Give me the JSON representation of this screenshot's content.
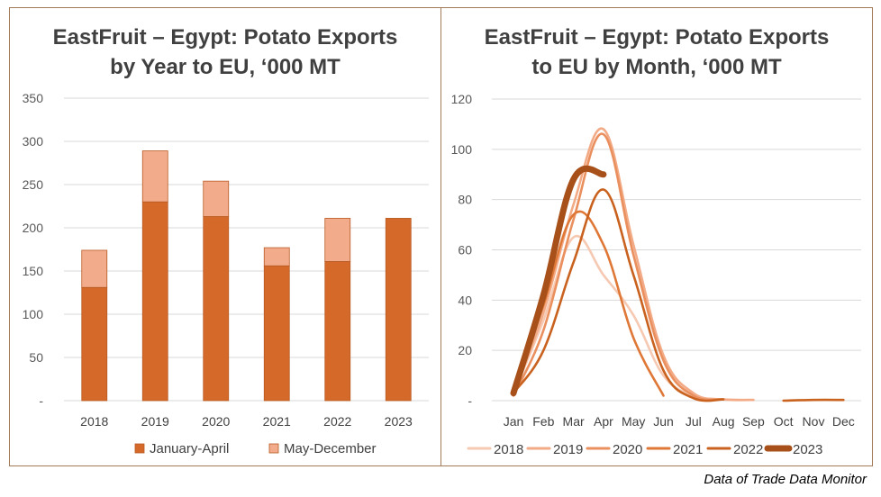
{
  "caption": "Data of Trade Data Monitor",
  "chart_data": [
    {
      "type": "bar",
      "stacked": true,
      "title": "EastFruit – Egypt: Potato Exports\nby Year to EU, ‘000 MT",
      "categories": [
        "2018",
        "2019",
        "2020",
        "2021",
        "2022",
        "2023"
      ],
      "series": [
        {
          "name": "January-April",
          "color": "#d4692a",
          "values": [
            131,
            230,
            213,
            156,
            161,
            211
          ]
        },
        {
          "name": "May-December",
          "color": "#f2ac8c",
          "values": [
            43,
            59,
            41,
            21,
            50,
            0
          ]
        }
      ],
      "y_ticks": [
        "-",
        "50",
        "100",
        "150",
        "200",
        "250",
        "300",
        "350"
      ],
      "ylim": [
        0,
        350
      ],
      "grid": true,
      "legend": "bottom"
    },
    {
      "type": "line",
      "title": "EastFruit – Egypt: Potato Exports\nto EU by Month, ‘000 MT",
      "x": [
        "Jan",
        "Feb",
        "Mar",
        "Apr",
        "May",
        "Jun",
        "Jul",
        "Aug",
        "Sep",
        "Oct",
        "Nov",
        "Dec"
      ],
      "y_ticks": [
        "-",
        "20",
        "40",
        "60",
        "80",
        "100",
        "120"
      ],
      "ylim": [
        0,
        120
      ],
      "grid": true,
      "legend": "bottom",
      "series": [
        {
          "name": "2018",
          "color": "#f6c9b2",
          "values": [
            3,
            32,
            65,
            50,
            34,
            10,
            2,
            0.5,
            0.3,
            null,
            null,
            null
          ]
        },
        {
          "name": "2019",
          "color": "#f2ab86",
          "values": [
            3,
            35,
            78,
            108,
            62,
            18,
            3,
            0.5,
            0.3,
            null,
            null,
            null
          ]
        },
        {
          "name": "2020",
          "color": "#ea8f5e",
          "values": [
            2,
            28,
            72,
            106,
            58,
            16,
            2,
            0.5,
            null,
            null,
            null,
            null
          ]
        },
        {
          "name": "2021",
          "color": "#df7837",
          "values": [
            3,
            38,
            74,
            62,
            25,
            2,
            null,
            null,
            null,
            null,
            null,
            null
          ]
        },
        {
          "name": "2022",
          "color": "#c9621f",
          "values": [
            3,
            20,
            55,
            84,
            50,
            12,
            1,
            0.5,
            null,
            0,
            0.3,
            0.3
          ]
        },
        {
          "name": "2023",
          "color": "#a8501a",
          "values": [
            3,
            42,
            88,
            90,
            null,
            null,
            null,
            null,
            null,
            null,
            null,
            null
          ]
        }
      ]
    }
  ]
}
